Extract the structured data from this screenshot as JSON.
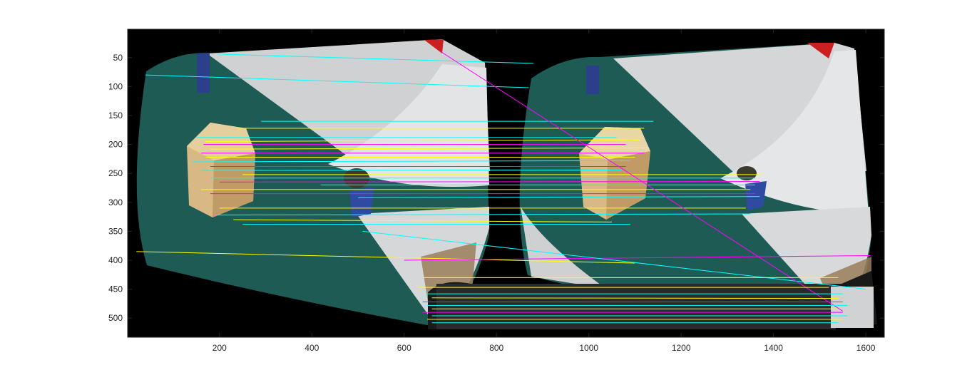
{
  "figure": {
    "kind": "matched-feature-correspondence-plot",
    "background": "#ffffff",
    "axes_frame_color": "#262626"
  },
  "chart_data": {
    "type": "image",
    "xlim": [
      1,
      1640
    ],
    "ylim": [
      533,
      1
    ],
    "x_ticks": [
      200,
      400,
      600,
      800,
      1000,
      1200,
      1400,
      1600
    ],
    "y_ticks": [
      50,
      100,
      150,
      200,
      250,
      300,
      350,
      400,
      450,
      500
    ],
    "grid": false,
    "line_colors": [
      "#ffff00",
      "#00ffff",
      "#ff00ff"
    ],
    "matches": [
      {
        "x1": 195,
        "y1": 44,
        "x2": 880,
        "y2": 60,
        "c": 1
      },
      {
        "x1": 40,
        "y1": 80,
        "x2": 870,
        "y2": 102,
        "c": 1
      },
      {
        "x1": 290,
        "y1": 160,
        "x2": 1140,
        "y2": 160,
        "c": 1
      },
      {
        "x1": 240,
        "y1": 172,
        "x2": 1120,
        "y2": 172,
        "c": 0
      },
      {
        "x1": 150,
        "y1": 188,
        "x2": 1060,
        "y2": 188,
        "c": 1
      },
      {
        "x1": 170,
        "y1": 195,
        "x2": 1110,
        "y2": 192,
        "c": 0
      },
      {
        "x1": 165,
        "y1": 200,
        "x2": 1080,
        "y2": 200,
        "c": 2
      },
      {
        "x1": 180,
        "y1": 208,
        "x2": 1130,
        "y2": 206,
        "c": 0
      },
      {
        "x1": 160,
        "y1": 215,
        "x2": 1120,
        "y2": 215,
        "c": 2
      },
      {
        "x1": 170,
        "y1": 222,
        "x2": 1100,
        "y2": 222,
        "c": 0
      },
      {
        "x1": 140,
        "y1": 230,
        "x2": 1090,
        "y2": 228,
        "c": 1
      },
      {
        "x1": 180,
        "y1": 238,
        "x2": 1080,
        "y2": 238,
        "c": 2
      },
      {
        "x1": 160,
        "y1": 245,
        "x2": 1070,
        "y2": 244,
        "c": 1
      },
      {
        "x1": 250,
        "y1": 252,
        "x2": 1370,
        "y2": 252,
        "c": 0
      },
      {
        "x1": 180,
        "y1": 258,
        "x2": 1360,
        "y2": 258,
        "c": 1
      },
      {
        "x1": 200,
        "y1": 265,
        "x2": 1370,
        "y2": 264,
        "c": 2
      },
      {
        "x1": 420,
        "y1": 270,
        "x2": 1360,
        "y2": 270,
        "c": 1
      },
      {
        "x1": 160,
        "y1": 278,
        "x2": 1350,
        "y2": 278,
        "c": 0
      },
      {
        "x1": 180,
        "y1": 285,
        "x2": 1360,
        "y2": 285,
        "c": 2
      },
      {
        "x1": 500,
        "y1": 292,
        "x2": 1370,
        "y2": 290,
        "c": 1
      },
      {
        "x1": 200,
        "y1": 310,
        "x2": 1340,
        "y2": 310,
        "c": 0
      },
      {
        "x1": 190,
        "y1": 322,
        "x2": 1350,
        "y2": 320,
        "c": 1
      },
      {
        "x1": 230,
        "y1": 330,
        "x2": 1050,
        "y2": 334,
        "c": 0
      },
      {
        "x1": 250,
        "y1": 338,
        "x2": 1090,
        "y2": 338,
        "c": 1
      },
      {
        "x1": 20,
        "y1": 385,
        "x2": 1100,
        "y2": 405,
        "c": 0
      },
      {
        "x1": 600,
        "y1": 400,
        "x2": 1610,
        "y2": 392,
        "c": 2
      },
      {
        "x1": 510,
        "y1": 350,
        "x2": 1600,
        "y2": 450,
        "c": 1
      },
      {
        "x1": 680,
        "y1": 40,
        "x2": 1550,
        "y2": 488,
        "c": 2
      },
      {
        "x1": 640,
        "y1": 430,
        "x2": 1540,
        "y2": 430,
        "c": 0
      },
      {
        "x1": 630,
        "y1": 447,
        "x2": 1520,
        "y2": 447,
        "c": 0
      },
      {
        "x1": 650,
        "y1": 458,
        "x2": 1550,
        "y2": 458,
        "c": 1
      },
      {
        "x1": 660,
        "y1": 465,
        "x2": 1540,
        "y2": 466,
        "c": 0
      },
      {
        "x1": 640,
        "y1": 472,
        "x2": 1550,
        "y2": 472,
        "c": 2
      },
      {
        "x1": 650,
        "y1": 478,
        "x2": 1560,
        "y2": 478,
        "c": 1
      },
      {
        "x1": 660,
        "y1": 484,
        "x2": 1540,
        "y2": 484,
        "c": 0
      },
      {
        "x1": 640,
        "y1": 490,
        "x2": 1550,
        "y2": 490,
        "c": 2
      },
      {
        "x1": 660,
        "y1": 496,
        "x2": 1560,
        "y2": 496,
        "c": 1
      },
      {
        "x1": 650,
        "y1": 502,
        "x2": 1550,
        "y2": 502,
        "c": 0
      },
      {
        "x1": 660,
        "y1": 508,
        "x2": 1540,
        "y2": 508,
        "c": 1
      }
    ]
  }
}
